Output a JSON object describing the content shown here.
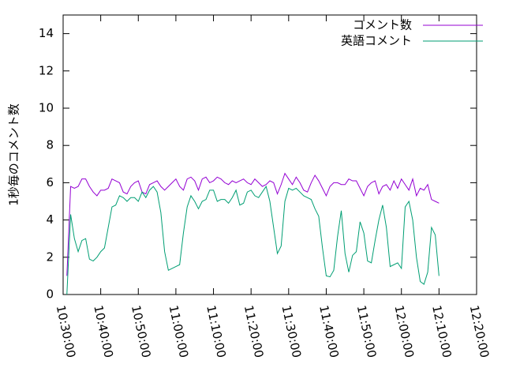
{
  "chart_data": {
    "type": "line",
    "ylabel": "1秒毎のコメント数",
    "x": [
      "10:31:00",
      "10:32:00",
      "10:33:00",
      "10:34:00",
      "10:35:00",
      "10:36:00",
      "10:37:00",
      "10:38:00",
      "10:39:00",
      "10:40:00",
      "10:41:00",
      "10:42:00",
      "10:43:00",
      "10:44:00",
      "10:45:00",
      "10:46:00",
      "10:47:00",
      "10:48:00",
      "10:49:00",
      "10:50:00",
      "10:51:00",
      "10:52:00",
      "10:53:00",
      "10:54:00",
      "10:55:00",
      "10:56:00",
      "10:57:00",
      "10:58:00",
      "10:59:00",
      "11:00:00",
      "11:01:00",
      "11:02:00",
      "11:03:00",
      "11:04:00",
      "11:05:00",
      "11:06:00",
      "11:07:00",
      "11:08:00",
      "11:09:00",
      "11:10:00",
      "11:11:00",
      "11:12:00",
      "11:13:00",
      "11:14:00",
      "11:15:00",
      "11:16:00",
      "11:17:00",
      "11:18:00",
      "11:19:00",
      "11:20:00",
      "11:21:00",
      "11:22:00",
      "11:23:00",
      "11:24:00",
      "11:25:00",
      "11:26:00",
      "11:27:00",
      "11:28:00",
      "11:29:00",
      "11:30:00",
      "11:31:00",
      "11:32:00",
      "11:33:00",
      "11:34:00",
      "11:35:00",
      "11:36:00",
      "11:37:00",
      "11:38:00",
      "11:39:00",
      "11:40:00",
      "11:41:00",
      "11:42:00",
      "11:43:00",
      "11:44:00",
      "11:45:00",
      "11:46:00",
      "11:47:00",
      "11:48:00",
      "11:49:00",
      "11:50:00",
      "11:51:00",
      "11:52:00",
      "11:53:00",
      "11:54:00",
      "11:55:00",
      "11:56:00",
      "11:57:00",
      "11:58:00",
      "11:59:00",
      "12:00:00",
      "12:01:00",
      "12:02:00",
      "12:03:00",
      "12:04:00",
      "12:05:00",
      "12:06:00",
      "12:07:00",
      "12:08:00",
      "12:09:00",
      "12:10:00"
    ],
    "series": [
      {
        "name": "コメント数",
        "color": "#9400d3",
        "values": [
          1.0,
          5.8,
          5.7,
          5.8,
          6.2,
          6.2,
          5.8,
          5.5,
          5.3,
          5.6,
          5.6,
          5.7,
          6.2,
          6.1,
          6.0,
          5.5,
          5.4,
          5.8,
          6.0,
          6.1,
          5.5,
          5.4,
          5.9,
          6.0,
          6.1,
          5.8,
          5.6,
          5.8,
          6.0,
          6.2,
          5.8,
          5.6,
          6.2,
          6.3,
          6.1,
          5.6,
          6.2,
          6.3,
          6.0,
          6.1,
          6.3,
          6.2,
          6.0,
          5.9,
          6.1,
          6.0,
          6.1,
          6.2,
          6.0,
          5.9,
          6.2,
          6.0,
          5.8,
          5.9,
          6.1,
          6.0,
          5.4,
          5.9,
          6.5,
          6.2,
          5.9,
          6.3,
          6.0,
          5.6,
          5.5,
          6.0,
          6.4,
          6.1,
          5.7,
          5.3,
          5.8,
          6.0,
          6.0,
          5.9,
          5.9,
          6.2,
          6.1,
          6.1,
          5.7,
          5.3,
          5.8,
          6.0,
          6.1,
          5.4,
          5.8,
          5.9,
          5.6,
          6.1,
          5.7,
          6.2,
          5.9,
          5.6,
          6.2,
          5.3,
          5.7,
          5.6,
          5.9,
          5.1,
          5.0,
          4.9
        ]
      },
      {
        "name": "英語コメント",
        "color": "#009e73",
        "values": [
          0,
          4.3,
          3.0,
          2.3,
          2.9,
          3.0,
          1.9,
          1.8,
          2.0,
          2.3,
          2.5,
          3.6,
          4.7,
          4.8,
          5.3,
          5.2,
          5.0,
          5.2,
          5.2,
          5.0,
          5.5,
          5.2,
          5.6,
          5.8,
          5.5,
          4.4,
          2.3,
          1.3,
          1.4,
          1.5,
          1.6,
          3.3,
          4.7,
          5.3,
          5.0,
          4.6,
          5.0,
          5.1,
          5.6,
          5.6,
          5.0,
          5.1,
          5.1,
          4.9,
          5.2,
          5.6,
          4.8,
          4.9,
          5.5,
          5.6,
          5.3,
          5.2,
          5.5,
          5.8,
          5.0,
          3.6,
          2.2,
          2.6,
          5.0,
          5.7,
          5.6,
          5.7,
          5.5,
          5.3,
          5.2,
          5.1,
          4.6,
          4.2,
          2.5,
          1.0,
          0.95,
          1.3,
          3.1,
          4.5,
          2.2,
          1.2,
          2.1,
          2.3,
          3.9,
          3.3,
          1.8,
          1.7,
          2.9,
          4.0,
          4.8,
          3.6,
          1.5,
          1.6,
          1.7,
          1.4,
          4.7,
          5.0,
          4.0,
          2.0,
          0.7,
          0.55,
          1.2,
          3.6,
          3.2,
          1.0
        ]
      }
    ],
    "xlim": [
      "10:30:00",
      "12:20:00"
    ],
    "xticks": [
      "10:30:00",
      "10:40:00",
      "10:50:00",
      "11:00:00",
      "11:10:00",
      "11:20:00",
      "11:30:00",
      "11:40:00",
      "11:50:00",
      "12:00:00",
      "12:10:00",
      "12:20:00"
    ],
    "ylim": [
      0,
      15
    ],
    "yticks": [
      0,
      2,
      4,
      6,
      8,
      10,
      12,
      14
    ],
    "legend": "top-right"
  }
}
